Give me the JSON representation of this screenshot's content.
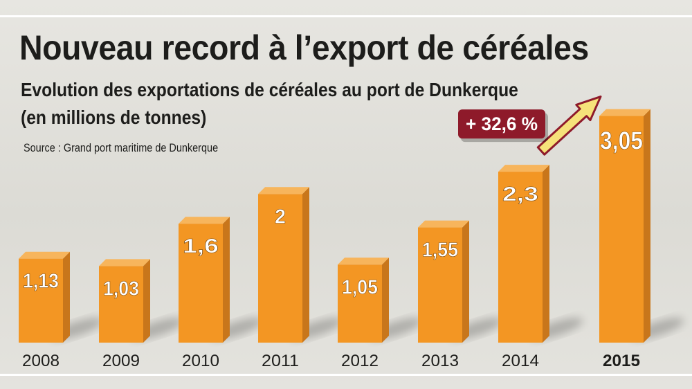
{
  "chart_data": {
    "type": "bar",
    "title": "Nouveau record à l’export de céréales",
    "subtitle": "Evolution des exportations de céréales au port de Dunkerque (en millions de tonnes)",
    "source": "Source : Grand port maritime de Dunkerque",
    "categories": [
      "2008",
      "2009",
      "2010",
      "2011",
      "2012",
      "2013",
      "2014",
      "2015"
    ],
    "values": [
      1.13,
      1.03,
      1.6,
      2,
      1.05,
      1.55,
      2.3,
      3.05
    ],
    "value_labels": [
      "1,13",
      "1,03",
      "1,6",
      "2",
      "1,05",
      "1,55",
      "2,3",
      "3,05"
    ],
    "highlighted_category": "2015",
    "ylim": [
      0,
      3.4
    ],
    "grid": false,
    "annotation": {
      "text": "+ 32,6 %",
      "from": "2014",
      "to": "2015"
    },
    "colors": {
      "bar_front": "#f39623",
      "bar_side": "#c8761b",
      "bar_top": "#f7b55c",
      "label_box": "#8e1a2a",
      "arrow_fill": "#f6e27a",
      "text": "#1d1d1b"
    }
  }
}
